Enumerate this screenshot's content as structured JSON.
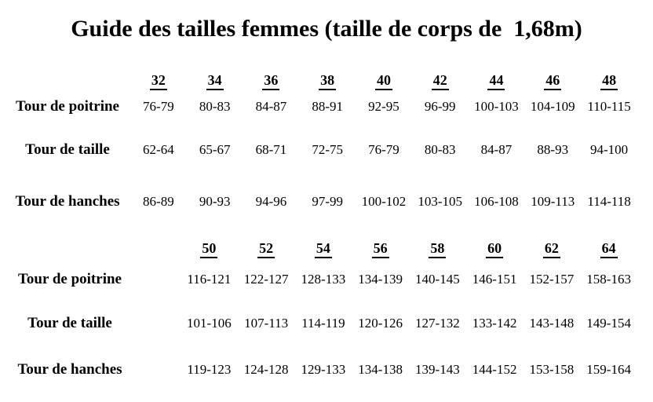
{
  "page": {
    "title": "Guide des tailles femmes (taille de corps de  1,68m)",
    "text_color": "#000000",
    "background_color": "#ffffff"
  },
  "table1": {
    "sizes": [
      "32",
      "34",
      "36",
      "38",
      "40",
      "42",
      "44",
      "46",
      "48"
    ],
    "rows": [
      {
        "label": "Tour de poitrine",
        "values": [
          "76-79",
          "80-83",
          "84-87",
          "88-91",
          "92-95",
          "96-99",
          "100-103",
          "104-109",
          "110-115"
        ]
      },
      {
        "label": "Tour de taille",
        "values": [
          "62-64",
          "65-67",
          "68-71",
          "72-75",
          "76-79",
          "80-83",
          "84-87",
          "88-93",
          "94-100"
        ]
      },
      {
        "label": "Tour de hanches",
        "values": [
          "86-89",
          "90-93",
          "94-96",
          "97-99",
          "100-102",
          "103-105",
          "106-108",
          "109-113",
          "114-118"
        ]
      }
    ]
  },
  "table2": {
    "sizes": [
      "50",
      "52",
      "54",
      "56",
      "58",
      "60",
      "62",
      "64"
    ],
    "rows": [
      {
        "label": "Tour de poitrine",
        "values": [
          "116-121",
          "122-127",
          "128-133",
          "134-139",
          "140-145",
          "146-151",
          "152-157",
          "158-163"
        ]
      },
      {
        "label": "Tour de taille",
        "values": [
          "101-106",
          "107-113",
          "114-119",
          "120-126",
          "127-132",
          "133-142",
          "143-148",
          "149-154"
        ]
      },
      {
        "label": "Tour de hanches",
        "values": [
          "119-123",
          "124-128",
          "129-133",
          "134-138",
          "139-143",
          "144-152",
          "153-158",
          "159-164"
        ]
      }
    ]
  }
}
